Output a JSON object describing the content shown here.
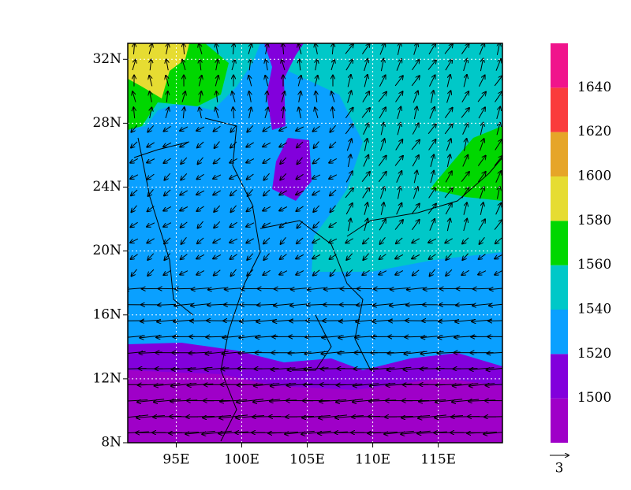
{
  "map": {
    "lon_range": [
      91.3,
      119.9
    ],
    "lat_range": [
      8,
      33
    ],
    "lon_ticks": [
      {
        "value": 95,
        "label": "95E"
      },
      {
        "value": 100,
        "label": "100E"
      },
      {
        "value": 105,
        "label": "105E"
      },
      {
        "value": 110,
        "label": "110E"
      },
      {
        "value": 115,
        "label": "115E"
      }
    ],
    "lat_ticks": [
      {
        "value": 8,
        "label": "8N"
      },
      {
        "value": 12,
        "label": "12N"
      },
      {
        "value": 16,
        "label": "16N"
      },
      {
        "value": 20,
        "label": "20N"
      },
      {
        "value": 24,
        "label": "24N"
      },
      {
        "value": 28,
        "label": "28N"
      },
      {
        "value": 32,
        "label": "32N"
      }
    ],
    "colorbar": {
      "levels": [
        1500,
        1520,
        1540,
        1560,
        1580,
        1600,
        1620,
        1640
      ],
      "colors": [
        "#9f00c8",
        "#8200dc",
        "#0aa0ff",
        "#00c8c8",
        "#00d700",
        "#e6dc32",
        "#e6a528",
        "#fa3c3c",
        "#f0148c"
      ]
    },
    "reference_vector": 3
  }
}
